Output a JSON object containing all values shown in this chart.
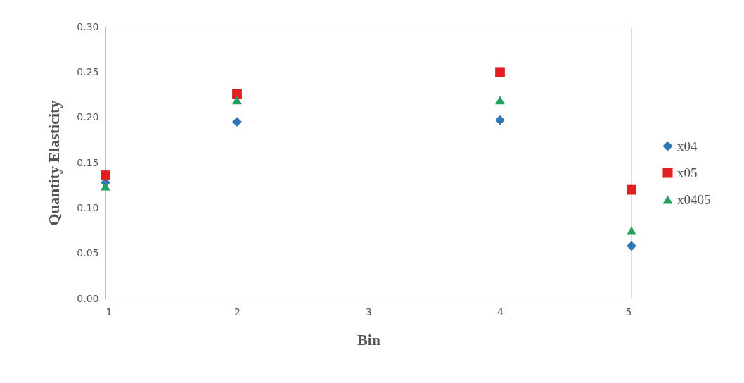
{
  "chart_data": {
    "type": "scatter",
    "xlabel": "Bin",
    "ylabel": "Quantity Elasticity",
    "x": [
      1,
      2,
      4,
      5
    ],
    "series": [
      {
        "name": "x04",
        "color": "#2e75b6",
        "marker": "diamond",
        "values": [
          0.128,
          0.195,
          0.197,
          0.058
        ]
      },
      {
        "name": "x05",
        "color": "#e02020",
        "marker": "square",
        "values": [
          0.136,
          0.226,
          0.25,
          0.12
        ]
      },
      {
        "name": "x0405",
        "color": "#21a060",
        "marker": "triangle",
        "values": [
          0.124,
          0.219,
          0.219,
          0.075
        ]
      }
    ],
    "xlim": [
      1,
      5
    ],
    "xticks": [
      1,
      2,
      3,
      4,
      5
    ],
    "ylim": [
      0,
      0.3
    ],
    "yticks": [
      {
        "value": 0,
        "label": "0.00"
      },
      {
        "value": 0.05,
        "label": "0.05"
      },
      {
        "value": 0.1,
        "label": "0.10"
      },
      {
        "value": 0.15,
        "label": "0.15"
      },
      {
        "value": 0.2,
        "label": "0.20"
      },
      {
        "value": 0.25,
        "label": "0.25"
      },
      {
        "value": 0.3,
        "label": "0.30"
      }
    ],
    "grid": false,
    "legend": "right"
  }
}
